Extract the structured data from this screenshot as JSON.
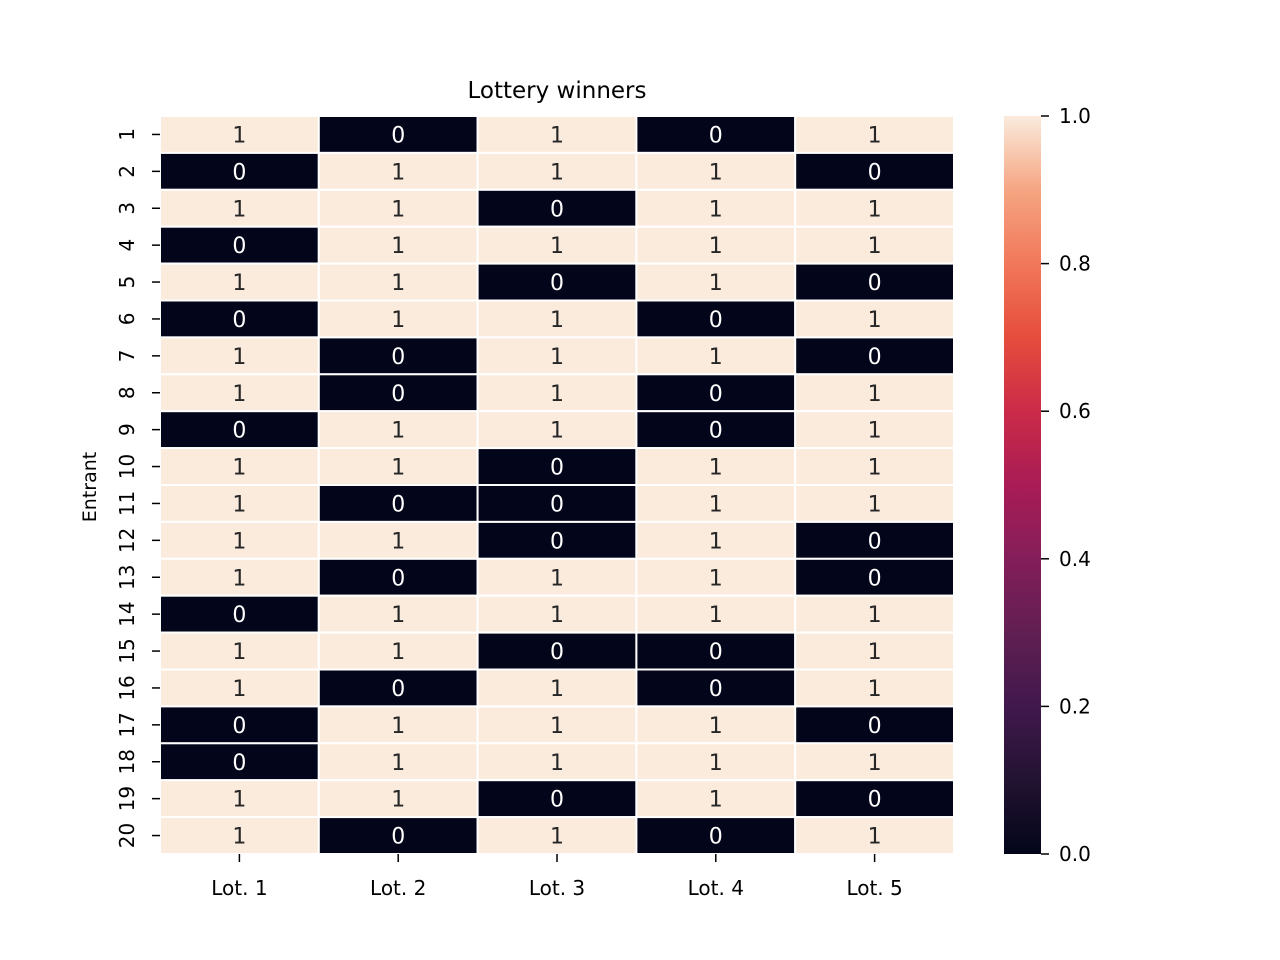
{
  "chart_data": {
    "type": "heatmap",
    "title": "Lottery winners",
    "xlabel": "",
    "ylabel": "Entrant",
    "x_categories": [
      "Lot. 1",
      "Lot. 2",
      "Lot. 3",
      "Lot. 4",
      "Lot. 5"
    ],
    "y_categories": [
      "1",
      "2",
      "3",
      "4",
      "5",
      "6",
      "7",
      "8",
      "9",
      "10",
      "11",
      "12",
      "13",
      "14",
      "15",
      "16",
      "17",
      "18",
      "19",
      "20"
    ],
    "values": [
      [
        1,
        0,
        1,
        0,
        1
      ],
      [
        0,
        1,
        1,
        1,
        0
      ],
      [
        1,
        1,
        0,
        1,
        1
      ],
      [
        0,
        1,
        1,
        1,
        1
      ],
      [
        1,
        1,
        0,
        1,
        0
      ],
      [
        0,
        1,
        1,
        0,
        1
      ],
      [
        1,
        0,
        1,
        1,
        0
      ],
      [
        1,
        0,
        1,
        0,
        1
      ],
      [
        0,
        1,
        1,
        0,
        1
      ],
      [
        1,
        1,
        0,
        1,
        1
      ],
      [
        1,
        0,
        0,
        1,
        1
      ],
      [
        1,
        1,
        0,
        1,
        0
      ],
      [
        1,
        0,
        1,
        1,
        0
      ],
      [
        0,
        1,
        1,
        1,
        1
      ],
      [
        1,
        1,
        0,
        0,
        1
      ],
      [
        1,
        0,
        1,
        0,
        1
      ],
      [
        0,
        1,
        1,
        1,
        0
      ],
      [
        0,
        1,
        1,
        1,
        1
      ],
      [
        1,
        1,
        0,
        1,
        0
      ],
      [
        1,
        0,
        1,
        0,
        1
      ]
    ],
    "annotations": true,
    "colorbar": {
      "range": [
        0.0,
        1.0
      ],
      "ticks": [
        "0.0",
        "0.2",
        "0.4",
        "0.6",
        "0.8",
        "1.0"
      ],
      "colormap": "rocket"
    },
    "colors": {
      "high": "#faebdd",
      "low": "#03051a",
      "cell_border": "#ffffff",
      "text_on_high": "#262626",
      "text_on_low": "#ffffff"
    },
    "grid": false
  }
}
